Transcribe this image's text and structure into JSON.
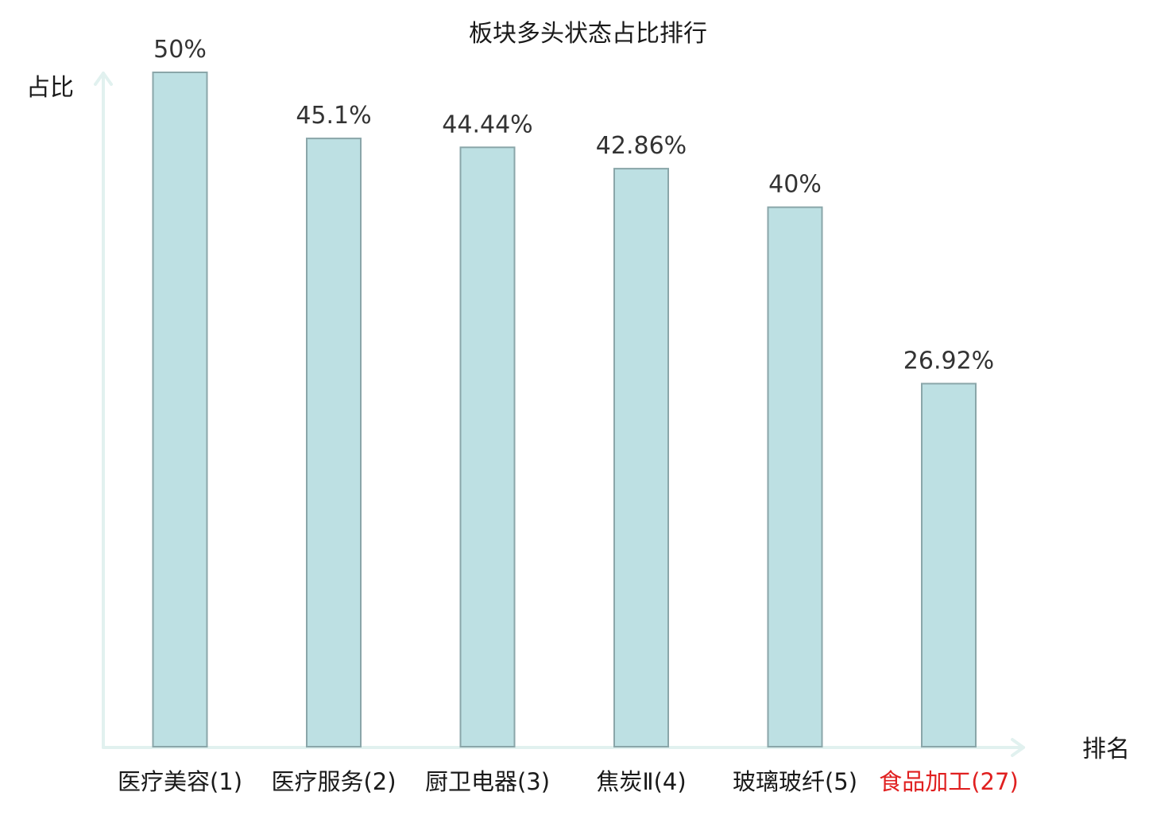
{
  "chart_data": {
    "type": "bar",
    "title": "板块多头状态占比排行",
    "ylabel": "占比",
    "xlabel": "排名",
    "ylim": [
      0,
      50
    ],
    "grid": false,
    "legend": "none",
    "categories": [
      "医疗美容(1)",
      "医疗服务(2)",
      "厨卫电器(3)",
      "焦炭Ⅱ(4)",
      "玻璃玻纤(5)",
      "食品加工(27)"
    ],
    "values": [
      50,
      45.1,
      44.44,
      42.86,
      40,
      26.92
    ],
    "value_labels": [
      "50%",
      "45.1%",
      "44.44%",
      "42.86%",
      "40%",
      "26.92%"
    ],
    "highlight_index": 5,
    "colors": {
      "bar_fill": "#bde0e3",
      "bar_stroke": "#8aa6a9",
      "axis": "#e1f1ef",
      "highlight": "#e02020"
    }
  }
}
